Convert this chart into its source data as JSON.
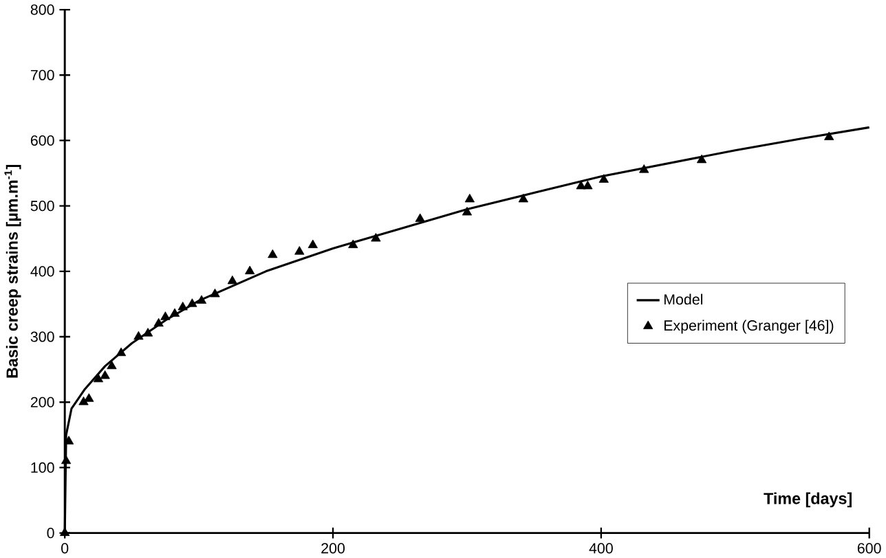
{
  "chart_data": {
    "type": "line",
    "xlabel": "Time [days]",
    "ylabel": "Basic creep strains [µm.m$^{-1}$]",
    "xlim": [
      0,
      600
    ],
    "xticks": [
      0,
      200,
      400,
      600
    ],
    "ylim": [
      0,
      800
    ],
    "yticks": [
      0,
      100,
      200,
      300,
      400,
      500,
      600,
      700,
      800
    ],
    "grid": false,
    "legend": "right",
    "series": [
      {
        "name": "Model",
        "color": "#000000",
        "marker": "none",
        "x": [
          0,
          1,
          5,
          15,
          30,
          50,
          75,
          100,
          150,
          200,
          250,
          300,
          350,
          400,
          450,
          500,
          550,
          600
        ],
        "values": [
          0,
          150,
          190,
          220,
          255,
          290,
          325,
          355,
          400,
          435,
          465,
          495,
          520,
          545,
          565,
          585,
          603,
          620
        ]
      },
      {
        "name": "Experiment (Granger [46])",
        "color": "#000000",
        "type": "scatter",
        "marker": "triangle",
        "x": [
          0,
          1,
          3,
          14,
          18,
          25,
          30,
          35,
          42,
          55,
          62,
          70,
          75,
          82,
          88,
          95,
          102,
          112,
          125,
          138,
          155,
          175,
          185,
          215,
          232,
          265,
          300,
          302,
          342,
          385,
          390,
          402,
          432,
          475,
          570
        ],
        "values": [
          0,
          110,
          140,
          200,
          205,
          235,
          240,
          255,
          275,
          300,
          305,
          320,
          330,
          335,
          345,
          350,
          355,
          365,
          385,
          400,
          425,
          430,
          440,
          440,
          450,
          480,
          490,
          510,
          510,
          530,
          530,
          540,
          555,
          570,
          605
        ]
      }
    ]
  }
}
